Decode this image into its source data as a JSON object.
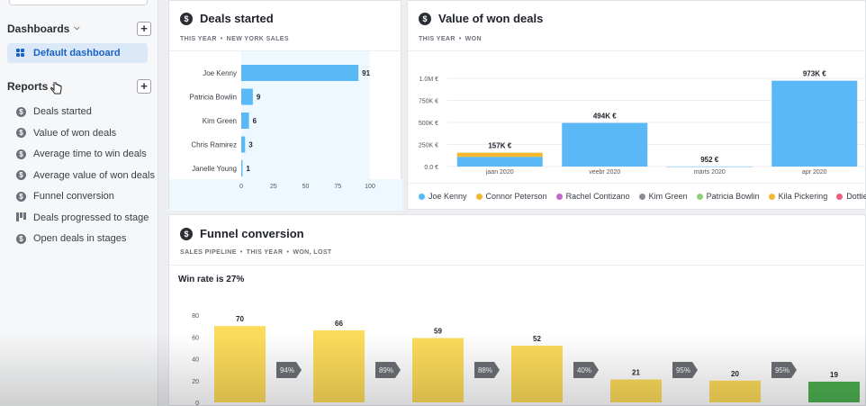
{
  "sidebar": {
    "dashboards_label": "Dashboards",
    "dashboard_items": [
      {
        "label": "Default dashboard",
        "active": true
      }
    ],
    "reports_label": "Reports",
    "report_items": [
      {
        "label": "Deals started",
        "icon": "dollar-icon"
      },
      {
        "label": "Value of won deals",
        "icon": "dollar-icon"
      },
      {
        "label": "Average time to win deals",
        "icon": "dollar-icon"
      },
      {
        "label": "Average value of won deals",
        "icon": "dollar-icon"
      },
      {
        "label": "Funnel conversion",
        "icon": "dollar-icon"
      },
      {
        "label": "Deals progressed to stage",
        "icon": "bars-icon"
      },
      {
        "label": "Open deals in stages",
        "icon": "dollar-icon"
      }
    ],
    "add_symbol": "+"
  },
  "deals_started": {
    "title": "Deals started",
    "filters": [
      "THIS YEAR",
      "NEW YORK SALES"
    ],
    "chart_data": {
      "type": "bar",
      "orientation": "horizontal",
      "categories": [
        "Joe Kenny",
        "Patricia Bowlin",
        "Kim Green",
        "Chris Ramirez",
        "Janelle Young"
      ],
      "values": [
        91,
        9,
        6,
        3,
        1
      ],
      "xticks": [
        "0",
        "25",
        "50",
        "75",
        "100"
      ],
      "xlim": [
        0,
        100
      ],
      "bar_color": "#5ab8f6"
    }
  },
  "value_won": {
    "title": "Value of won deals",
    "filters": [
      "THIS YEAR",
      "WON"
    ],
    "chart_data": {
      "type": "bar",
      "stacked": true,
      "categories": [
        "jaan 2020",
        "veebr 2020",
        "märts 2020",
        "apr 2020"
      ],
      "totals_labels": [
        "157K €",
        "494K €",
        "952 €",
        "973K €"
      ],
      "series": [
        {
          "name": "Joe Kenny",
          "color": "#5ab8f6",
          "values": [
            110000,
            494000,
            952,
            973000
          ]
        },
        {
          "name": "Connor Peterson",
          "color": "#f2b92f",
          "values": [
            47000,
            0,
            0,
            0
          ]
        }
      ],
      "yticks": [
        "0.0 €",
        "250K €",
        "500K €",
        "750K €",
        "1.0M €"
      ],
      "ylim": [
        0,
        1000000
      ]
    },
    "legend": [
      {
        "name": "Joe Kenny",
        "color": "#5ab8f6"
      },
      {
        "name": "Connor Peterson",
        "color": "#f2b92f"
      },
      {
        "name": "Rachel Contizano",
        "color": "#c469c9"
      },
      {
        "name": "Kim Green",
        "color": "#8a8d93"
      },
      {
        "name": "Patricia Bowlin",
        "color": "#8ed07a"
      },
      {
        "name": "Kila Pickering",
        "color": "#f2b92f"
      },
      {
        "name": "Dottie Rodrigue",
        "color": "#ee5f7b"
      }
    ]
  },
  "funnel": {
    "title": "Funnel conversion",
    "filters": [
      "SALES PIPELINE",
      "THIS YEAR",
      "WON, LOST"
    ],
    "win_rate": "Win rate is 27%",
    "chart_data": {
      "type": "bar",
      "values": [
        70,
        66,
        59,
        52,
        21,
        20,
        19
      ],
      "conversions": [
        "94%",
        "89%",
        "88%",
        "40%",
        "95%",
        "95%"
      ],
      "yticks": [
        "0",
        "20",
        "40",
        "60",
        "80"
      ],
      "ylim": [
        0,
        80
      ],
      "bar_color": "#fddb5a",
      "last_bar_color": "#4caf50"
    }
  }
}
